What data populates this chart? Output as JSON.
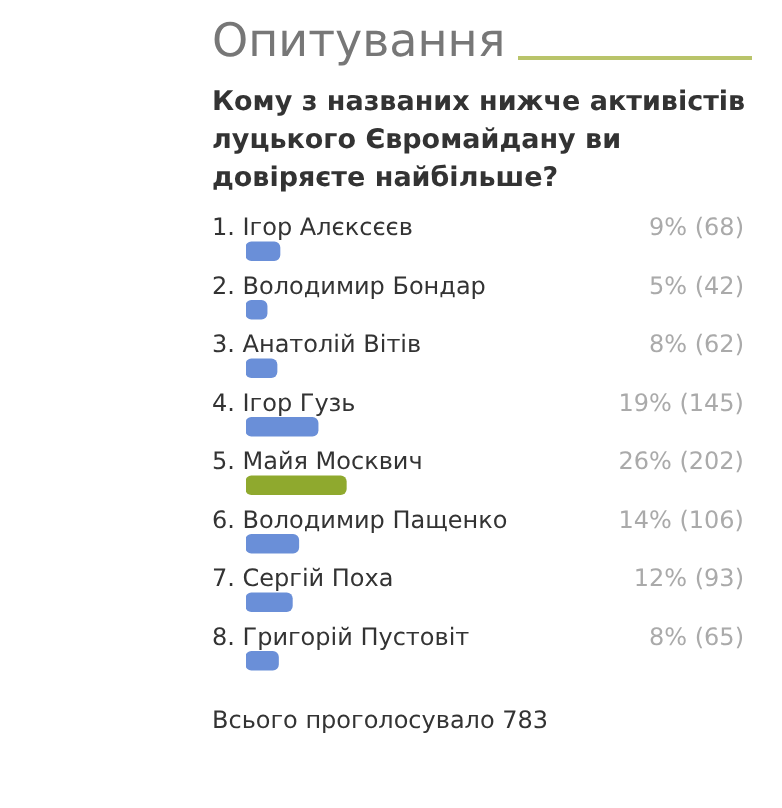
{
  "chart_data": {
    "type": "bar",
    "orientation": "horizontal",
    "title": "Опитування",
    "subtitle": "Кому з названих нижче активістів луцького Євромайдану ви довіряєте найбільше?",
    "categories": [
      "1. Ігор Алєксєєв",
      "2. Володимир Бондар",
      "3. Анатолій Вітів",
      "4. Ігор Гузь",
      "5. Майя Москвич",
      "6. Володимир Пащенко",
      "7. Сергій Поха",
      "8. Григорій Пустовіт"
    ],
    "values": [
      68,
      42,
      62,
      145,
      202,
      106,
      93,
      65
    ],
    "value_labels": [
      "9% (68)",
      "5% (42)",
      "8% (62)",
      "19% (145)",
      "26% (202)",
      "14% (106)",
      "12% (93)",
      "8% (65)"
    ],
    "colors": [
      "#6a8fd8",
      "#6a8fd8",
      "#6a8fd8",
      "#6a8fd8",
      "#8fa92e",
      "#6a8fd8",
      "#6a8fd8",
      "#6a8fd8"
    ],
    "annotations": [
      "Всього проголосувало 783"
    ],
    "tick_labels": false,
    "legend": false
  }
}
